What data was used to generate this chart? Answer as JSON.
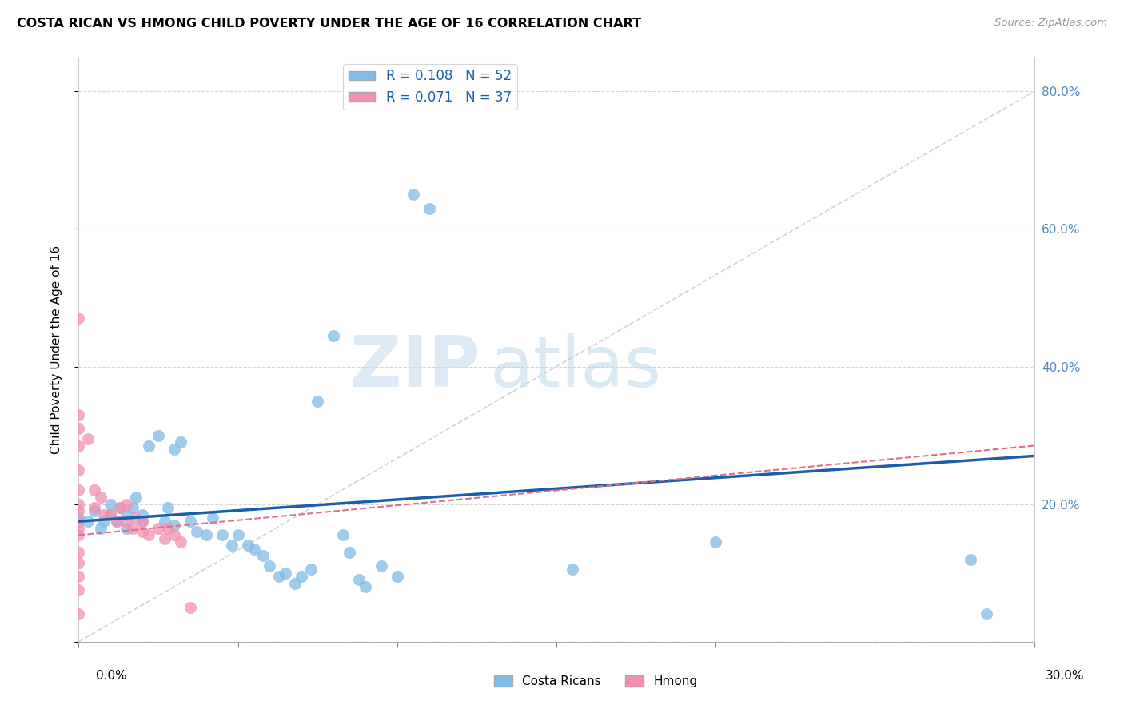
{
  "title": "COSTA RICAN VS HMONG CHILD POVERTY UNDER THE AGE OF 16 CORRELATION CHART",
  "source": "Source: ZipAtlas.com",
  "ylabel": "Child Poverty Under the Age of 16",
  "xlim": [
    0.0,
    0.3
  ],
  "ylim": [
    0.0,
    0.85
  ],
  "yticks": [
    0.0,
    0.2,
    0.4,
    0.6,
    0.8
  ],
  "ytick_right_labels": [
    "",
    "20.0%",
    "40.0%",
    "60.0%",
    "80.0%"
  ],
  "legend_entries": [
    {
      "label": "R = 0.108   N = 52",
      "color": "#aec6e8"
    },
    {
      "label": "R = 0.071   N = 37",
      "color": "#f4b8c1"
    }
  ],
  "blue_scatter_x": [
    0.0,
    0.003,
    0.005,
    0.007,
    0.008,
    0.01,
    0.01,
    0.012,
    0.013,
    0.015,
    0.015,
    0.017,
    0.018,
    0.02,
    0.02,
    0.022,
    0.025,
    0.027,
    0.028,
    0.03,
    0.03,
    0.032,
    0.035,
    0.037,
    0.04,
    0.042,
    0.045,
    0.048,
    0.05,
    0.053,
    0.055,
    0.058,
    0.06,
    0.063,
    0.065,
    0.068,
    0.07,
    0.073,
    0.075,
    0.08,
    0.083,
    0.085,
    0.088,
    0.09,
    0.095,
    0.1,
    0.105,
    0.11,
    0.155,
    0.2,
    0.28,
    0.285
  ],
  "blue_scatter_y": [
    0.18,
    0.175,
    0.19,
    0.165,
    0.175,
    0.185,
    0.2,
    0.175,
    0.195,
    0.185,
    0.165,
    0.195,
    0.21,
    0.185,
    0.175,
    0.285,
    0.3,
    0.175,
    0.195,
    0.28,
    0.17,
    0.29,
    0.175,
    0.16,
    0.155,
    0.18,
    0.155,
    0.14,
    0.155,
    0.14,
    0.135,
    0.125,
    0.11,
    0.095,
    0.1,
    0.085,
    0.095,
    0.105,
    0.35,
    0.445,
    0.155,
    0.13,
    0.09,
    0.08,
    0.11,
    0.095,
    0.65,
    0.63,
    0.105,
    0.145,
    0.12,
    0.04
  ],
  "pink_scatter_x": [
    0.0,
    0.0,
    0.0,
    0.0,
    0.0,
    0.0,
    0.0,
    0.0,
    0.0,
    0.0,
    0.003,
    0.005,
    0.005,
    0.007,
    0.008,
    0.01,
    0.012,
    0.013,
    0.015,
    0.015,
    0.017,
    0.018,
    0.02,
    0.02,
    0.022,
    0.025,
    0.027,
    0.028,
    0.03,
    0.032,
    0.035,
    0.0,
    0.0,
    0.0,
    0.0,
    0.0,
    0.0
  ],
  "pink_scatter_y": [
    0.47,
    0.285,
    0.25,
    0.22,
    0.2,
    0.19,
    0.175,
    0.165,
    0.155,
    0.04,
    0.295,
    0.22,
    0.195,
    0.21,
    0.185,
    0.185,
    0.175,
    0.195,
    0.2,
    0.175,
    0.165,
    0.18,
    0.175,
    0.16,
    0.155,
    0.165,
    0.15,
    0.165,
    0.155,
    0.145,
    0.05,
    0.33,
    0.31,
    0.13,
    0.115,
    0.095,
    0.075
  ],
  "blue_trend_x": [
    0.0,
    0.3
  ],
  "blue_trend_y": [
    0.175,
    0.27
  ],
  "pink_trend_x": [
    0.0,
    0.3
  ],
  "pink_trend_y": [
    0.155,
    0.285
  ],
  "diag_line_x": [
    0.0,
    0.3
  ],
  "diag_line_y": [
    0.0,
    0.8
  ],
  "costa_ricans_color": "#7fbce8",
  "hmong_color": "#f48fb1",
  "blue_trend_color": "#1a5fac",
  "pink_trend_color": "#e07080",
  "diag_color": "#c8c8c8",
  "watermark_zip": "ZIP",
  "watermark_atlas": "atlas",
  "background_color": "#ffffff",
  "grid_color": "#d5d5d5"
}
